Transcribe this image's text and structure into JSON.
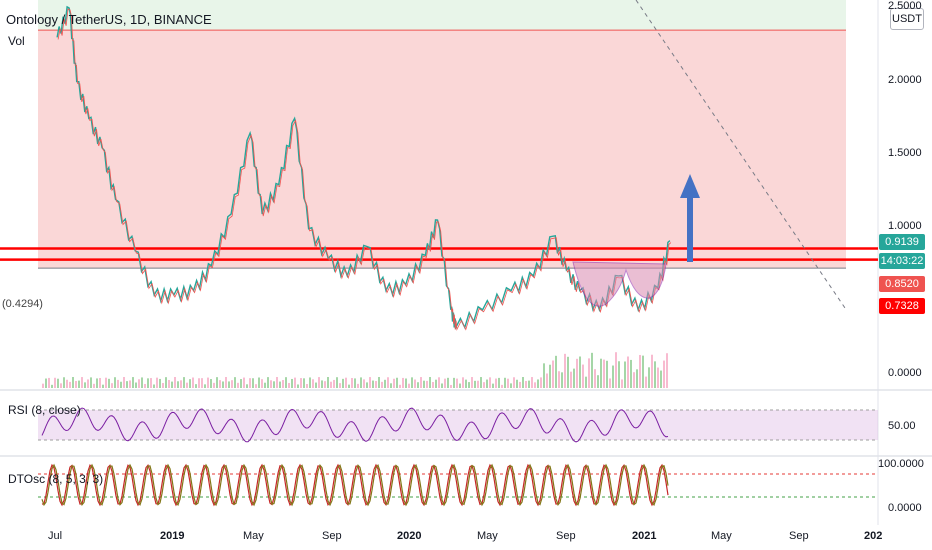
{
  "header": {
    "title": "Ontology / TetherUS, 1D, BINANCE",
    "currency": "USDT",
    "vol_label": "Vol",
    "left_level": "(0.4294)"
  },
  "price_axis": {
    "ticks": [
      "2.5000",
      "2.0000",
      "1.5000",
      "1.0000",
      "0.0000"
    ],
    "tags": [
      {
        "text": "0.9139",
        "color": "#26a69a"
      },
      {
        "text": "14:03:22",
        "color": "#26a69a"
      },
      {
        "text": "0.8520",
        "color": "#ef5350"
      },
      {
        "text": "0.7328",
        "color": "#ff0000"
      }
    ]
  },
  "rsi": {
    "label": "RSI (8, close)",
    "tick": "50.00",
    "color": "#7b1fa2"
  },
  "dtosc": {
    "label": "DTOsc (8, 5, 3, 3)",
    "ticks": [
      "100.0000",
      "0.0000"
    ]
  },
  "x_axis": {
    "labels": [
      {
        "text": "Jul",
        "bold": false
      },
      {
        "text": "2019",
        "bold": true
      },
      {
        "text": "May",
        "bold": false
      },
      {
        "text": "Sep",
        "bold": false
      },
      {
        "text": "2020",
        "bold": true
      },
      {
        "text": "May",
        "bold": false
      },
      {
        "text": "Sep",
        "bold": false
      },
      {
        "text": "2021",
        "bold": true
      },
      {
        "text": "May",
        "bold": false
      },
      {
        "text": "Sep",
        "bold": false
      },
      {
        "text": "202",
        "bold": true
      }
    ]
  },
  "chart_data": {
    "type": "line",
    "title": "Ontology / TetherUS, 1D, BINANCE",
    "ylim": [
      0,
      2.5
    ],
    "y_ticks": [
      0,
      1.0,
      1.5,
      2.0,
      2.5
    ],
    "price_path": [
      [
        "2018-07-01",
        2.3
      ],
      [
        "2018-07-20",
        2.5
      ],
      [
        "2018-08-01",
        2.0
      ],
      [
        "2018-08-20",
        1.75
      ],
      [
        "2018-09-10",
        1.55
      ],
      [
        "2018-10-01",
        1.2
      ],
      [
        "2018-11-01",
        0.85
      ],
      [
        "2018-12-01",
        0.55
      ],
      [
        "2019-01-01",
        0.55
      ],
      [
        "2019-02-01",
        0.58
      ],
      [
        "2019-03-01",
        0.75
      ],
      [
        "2019-04-01",
        1.1
      ],
      [
        "2019-05-01",
        1.65
      ],
      [
        "2019-05-20",
        1.1
      ],
      [
        "2019-06-15",
        1.3
      ],
      [
        "2019-07-10",
        1.75
      ],
      [
        "2019-08-01",
        1.0
      ],
      [
        "2019-09-01",
        0.8
      ],
      [
        "2019-10-01",
        0.68
      ],
      [
        "2019-11-01",
        0.88
      ],
      [
        "2019-12-01",
        0.58
      ],
      [
        "2020-01-01",
        0.62
      ],
      [
        "2020-02-01",
        0.82
      ],
      [
        "2020-02-20",
        1.06
      ],
      [
        "2020-03-12",
        0.45
      ],
      [
        "2020-03-20",
        0.33
      ],
      [
        "2020-05-01",
        0.45
      ],
      [
        "2020-06-15",
        0.58
      ],
      [
        "2020-07-20",
        0.68
      ],
      [
        "2020-08-20",
        0.95
      ],
      [
        "2020-09-10",
        0.72
      ],
      [
        "2020-10-01",
        0.58
      ],
      [
        "2020-11-01",
        0.45
      ],
      [
        "2020-12-01",
        0.68
      ],
      [
        "2021-01-01",
        0.45
      ],
      [
        "2021-02-01",
        0.6
      ],
      [
        "2021-02-20",
        0.92
      ]
    ],
    "horizontal_levels": [
      {
        "value": 0.9139,
        "color": "#ff0000"
      },
      {
        "value": 0.852,
        "color": "#ff0000"
      },
      {
        "value": 0.7328,
        "color": "#ff0000"
      },
      {
        "value": 2.35,
        "color": "#ff0000"
      }
    ],
    "rsi_period": 8,
    "rsi_mid": 50,
    "dtosc_range": [
      0,
      100
    ],
    "annotations": [
      "up-arrow",
      "cup-and-handle"
    ]
  }
}
